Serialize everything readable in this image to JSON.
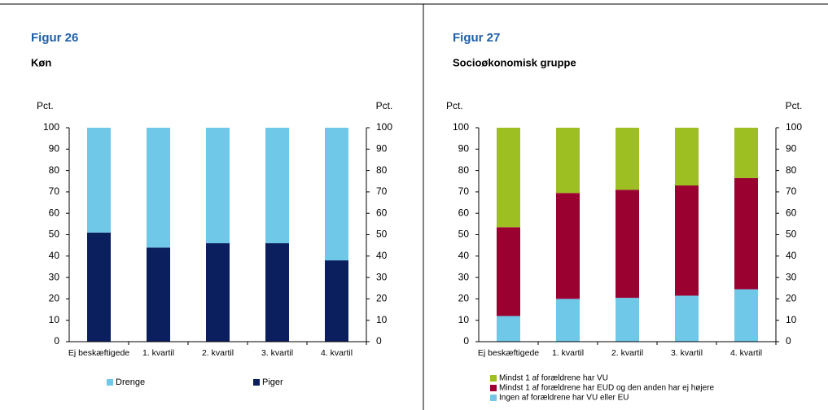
{
  "chart_data": [
    {
      "type": "stacked_bar",
      "title": "Figur 26",
      "subtitle": "Køn",
      "y_label": "Pct.",
      "y2_label": "Pct.",
      "categories": [
        "Ej beskæftigede",
        "1. kvartil",
        "2. kvartil",
        "3. kvartil",
        "4. kvartil"
      ],
      "series": [
        {
          "name": "Drenge",
          "color": "#70c8e8",
          "values": [
            49,
            56,
            54,
            54,
            62
          ]
        },
        {
          "name": "Piger",
          "color": "#0b1f5e",
          "values": [
            51,
            44,
            46,
            46,
            38
          ]
        }
      ],
      "ylim": [
        0,
        100
      ],
      "yticks": [
        0,
        10,
        20,
        30,
        40,
        50,
        60,
        70,
        80,
        90,
        100
      ],
      "y2lim": [
        0,
        100
      ],
      "y2ticks": [
        0,
        10,
        20,
        30,
        40,
        50,
        60,
        70,
        80,
        90,
        100
      ],
      "legend": "bottom-row"
    },
    {
      "type": "stacked_bar",
      "title": "Figur 27",
      "subtitle": "Socioøkonomisk gruppe",
      "y_label": "Pct.",
      "y2_label": "Pct.",
      "categories": [
        "Ej beskæftigede",
        "1. kvartil",
        "2. kvartil",
        "3. kvartil",
        "4. kvartil"
      ],
      "series": [
        {
          "name": "Mindst 1 af forældrene har VU",
          "color": "#9dbf22",
          "values": [
            46.5,
            30.5,
            29,
            27,
            23.5
          ]
        },
        {
          "name": "Mindst 1 af forældrene har EUD og den anden har ej højere",
          "color": "#9a0030",
          "values": [
            41.5,
            49.5,
            50.5,
            51.5,
            52
          ]
        },
        {
          "name": "Ingen af forældrene har VU eller EU",
          "color": "#70c8e8",
          "values": [
            12,
            20,
            20.5,
            21.5,
            24.5
          ]
        }
      ],
      "ylim": [
        0,
        100
      ],
      "yticks": [
        0,
        10,
        20,
        30,
        40,
        50,
        60,
        70,
        80,
        90,
        100
      ],
      "y2lim": [
        0,
        100
      ],
      "y2ticks": [
        0,
        10,
        20,
        30,
        40,
        50,
        60,
        70,
        80,
        90,
        100
      ],
      "legend": "bottom-column"
    }
  ]
}
